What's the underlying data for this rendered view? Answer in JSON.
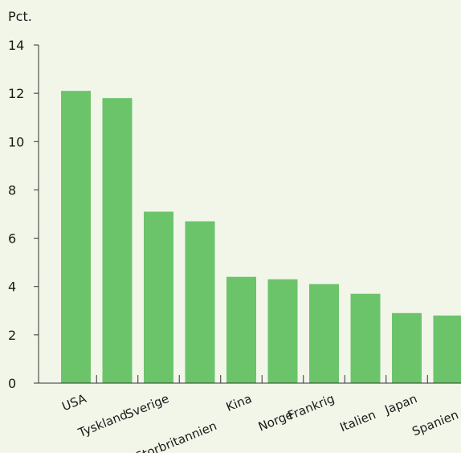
{
  "colors": {
    "background": "#f1f6e9",
    "bar": "#6cc46a",
    "axis": "#333333"
  },
  "chart_data": {
    "type": "bar",
    "ylabel": "Pct.",
    "ylim": [
      0,
      14
    ],
    "yticks": [
      0,
      2,
      4,
      6,
      8,
      10,
      12,
      14
    ],
    "grid": false,
    "categories": [
      "USA",
      "Tyskland",
      "Sverige",
      "Storbritannien",
      "Kina",
      "Norge",
      "Frankrig",
      "Italien",
      "Japan",
      "Spanien"
    ],
    "values": [
      12.1,
      11.8,
      7.1,
      6.7,
      4.4,
      4.3,
      4.1,
      3.7,
      2.9,
      2.8
    ]
  }
}
